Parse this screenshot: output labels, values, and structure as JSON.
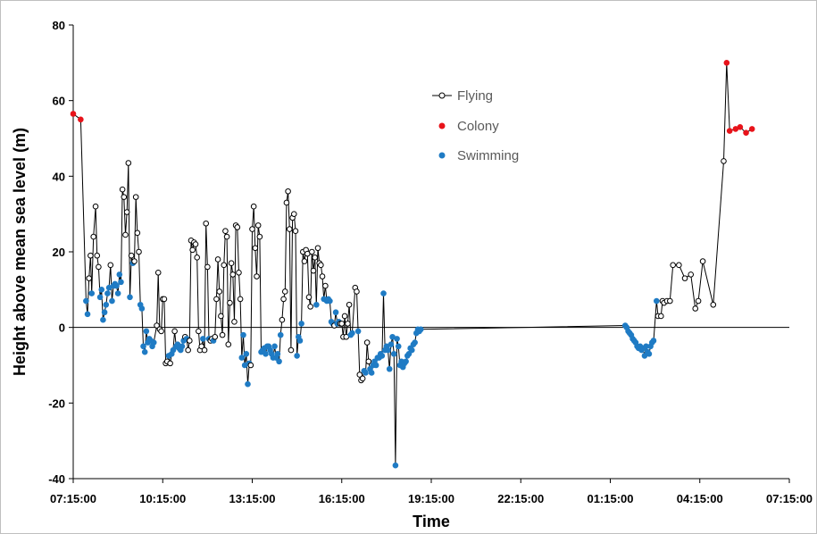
{
  "chart_data": {
    "type": "scatter",
    "xlabel": "Time",
    "ylabel": "Height above mean sea level (m)",
    "ylim": [
      -40,
      80
    ],
    "yticks": [
      "-40",
      "-20",
      "0",
      "20",
      "40",
      "60",
      "80"
    ],
    "x_unit": "hours from 07:15:00",
    "xlim": [
      0,
      24
    ],
    "xticks": [
      "07:15:00",
      "10:15:00",
      "13:15:00",
      "16:15:00",
      "19:15:00",
      "22:15:00",
      "01:15:00",
      "04:15:00",
      "07:15:00"
    ],
    "legend_position": "upper-middle",
    "grid": false,
    "colors": {
      "flying": "#000000",
      "colony": "#e8131a",
      "swimming": "#1f7bc4",
      "line": "#000000"
    },
    "series": [
      {
        "name": "Flying",
        "marker": "open-circle",
        "line": true
      },
      {
        "name": "Colony",
        "marker": "filled-circle",
        "line": false
      },
      {
        "name": "Swimming",
        "marker": "filled-circle",
        "line": false
      }
    ],
    "points": [
      [
        0.0,
        56.5,
        "c"
      ],
      [
        0.25,
        55.0,
        "c"
      ],
      [
        0.43,
        7.0,
        "s"
      ],
      [
        0.48,
        3.5,
        "s"
      ],
      [
        0.53,
        13.0,
        "f"
      ],
      [
        0.58,
        19.0,
        "f"
      ],
      [
        0.62,
        9.0,
        "s"
      ],
      [
        0.68,
        24.0,
        "f"
      ],
      [
        0.75,
        32.0,
        "f"
      ],
      [
        0.8,
        19.0,
        "f"
      ],
      [
        0.85,
        16.0,
        "f"
      ],
      [
        0.9,
        8.0,
        "s"
      ],
      [
        0.95,
        10.0,
        "s"
      ],
      [
        1.0,
        2.0,
        "s"
      ],
      [
        1.05,
        4.0,
        "s"
      ],
      [
        1.1,
        6.0,
        "s"
      ],
      [
        1.15,
        9.0,
        "s"
      ],
      [
        1.2,
        10.5,
        "s"
      ],
      [
        1.25,
        16.5,
        "f"
      ],
      [
        1.3,
        7.0,
        "s"
      ],
      [
        1.35,
        11.0,
        "s"
      ],
      [
        1.4,
        11.5,
        "s"
      ],
      [
        1.45,
        11.0,
        "s"
      ],
      [
        1.5,
        9.0,
        "s"
      ],
      [
        1.55,
        14.0,
        "s"
      ],
      [
        1.6,
        12.0,
        "s"
      ],
      [
        1.65,
        36.5,
        "f"
      ],
      [
        1.7,
        34.5,
        "f"
      ],
      [
        1.75,
        24.5,
        "f"
      ],
      [
        1.8,
        30.5,
        "f"
      ],
      [
        1.85,
        43.5,
        "f"
      ],
      [
        1.9,
        8.0,
        "s"
      ],
      [
        1.95,
        19.0,
        "f"
      ],
      [
        2.0,
        17.0,
        "s"
      ],
      [
        2.05,
        17.5,
        "f"
      ],
      [
        2.1,
        34.5,
        "f"
      ],
      [
        2.15,
        25.0,
        "f"
      ],
      [
        2.2,
        20.0,
        "f"
      ],
      [
        2.25,
        6.0,
        "s"
      ],
      [
        2.3,
        5.0,
        "s"
      ],
      [
        2.35,
        -5.0,
        "s"
      ],
      [
        2.4,
        -6.5,
        "s"
      ],
      [
        2.45,
        -1.0,
        "s"
      ],
      [
        2.5,
        -4.0,
        "s"
      ],
      [
        2.55,
        -3.0,
        "s"
      ],
      [
        2.6,
        -3.5,
        "s"
      ],
      [
        2.65,
        -5.0,
        "s"
      ],
      [
        2.7,
        -4.0,
        "s"
      ],
      [
        2.8,
        0.5,
        "f"
      ],
      [
        2.85,
        14.5,
        "f"
      ],
      [
        2.9,
        -0.5,
        "f"
      ],
      [
        2.95,
        -1.0,
        "f"
      ],
      [
        3.0,
        7.5,
        "f"
      ],
      [
        3.05,
        7.5,
        "f"
      ],
      [
        3.1,
        -9.5,
        "f"
      ],
      [
        3.15,
        -9.0,
        "f"
      ],
      [
        3.2,
        -7.5,
        "s"
      ],
      [
        3.25,
        -9.5,
        "f"
      ],
      [
        3.3,
        -7.0,
        "s"
      ],
      [
        3.35,
        -6.0,
        "s"
      ],
      [
        3.4,
        -1.0,
        "f"
      ],
      [
        3.45,
        -5.0,
        "s"
      ],
      [
        3.5,
        -4.5,
        "s"
      ],
      [
        3.55,
        -5.5,
        "s"
      ],
      [
        3.6,
        -6.0,
        "s"
      ],
      [
        3.65,
        -5.0,
        "s"
      ],
      [
        3.7,
        -3.5,
        "s"
      ],
      [
        3.75,
        -2.5,
        "f"
      ],
      [
        3.8,
        -3.0,
        "s"
      ],
      [
        3.85,
        -6.0,
        "f"
      ],
      [
        3.9,
        -3.5,
        "f"
      ],
      [
        3.95,
        23.0,
        "f"
      ],
      [
        4.0,
        20.5,
        "f"
      ],
      [
        4.05,
        22.5,
        "f"
      ],
      [
        4.1,
        22.0,
        "f"
      ],
      [
        4.15,
        18.5,
        "f"
      ],
      [
        4.2,
        -1.0,
        "f"
      ],
      [
        4.25,
        -6.0,
        "f"
      ],
      [
        4.3,
        -5.0,
        "f"
      ],
      [
        4.35,
        -3.0,
        "s"
      ],
      [
        4.4,
        -6.0,
        "f"
      ],
      [
        4.45,
        27.5,
        "f"
      ],
      [
        4.5,
        16.0,
        "f"
      ],
      [
        4.55,
        -3.0,
        "s"
      ],
      [
        4.6,
        -3.5,
        "f"
      ],
      [
        4.65,
        -3.0,
        "f"
      ],
      [
        4.7,
        -3.5,
        "s"
      ],
      [
        4.75,
        -2.5,
        "f"
      ],
      [
        4.8,
        7.5,
        "f"
      ],
      [
        4.85,
        18.0,
        "f"
      ],
      [
        4.9,
        9.5,
        "f"
      ],
      [
        4.95,
        3.0,
        "f"
      ],
      [
        5.0,
        -2.0,
        "f"
      ],
      [
        5.05,
        16.5,
        "f"
      ],
      [
        5.1,
        25.5,
        "f"
      ],
      [
        5.15,
        24.0,
        "f"
      ],
      [
        5.2,
        -4.5,
        "f"
      ],
      [
        5.25,
        6.5,
        "f"
      ],
      [
        5.3,
        17.0,
        "f"
      ],
      [
        5.35,
        14.0,
        "f"
      ],
      [
        5.4,
        1.5,
        "f"
      ],
      [
        5.45,
        27.0,
        "f"
      ],
      [
        5.5,
        26.5,
        "f"
      ],
      [
        5.55,
        14.5,
        "f"
      ],
      [
        5.6,
        7.5,
        "f"
      ],
      [
        5.65,
        -8.0,
        "s"
      ],
      [
        5.7,
        -2.0,
        "s"
      ],
      [
        5.75,
        -10.0,
        "s"
      ],
      [
        5.8,
        -7.0,
        "s"
      ],
      [
        5.85,
        -15.0,
        "s"
      ],
      [
        5.9,
        -9.5,
        "s"
      ],
      [
        5.95,
        -10.0,
        "f"
      ],
      [
        6.0,
        26.0,
        "f"
      ],
      [
        6.05,
        32.0,
        "f"
      ],
      [
        6.1,
        21.0,
        "f"
      ],
      [
        6.15,
        13.5,
        "f"
      ],
      [
        6.2,
        27.0,
        "f"
      ],
      [
        6.25,
        24.0,
        "f"
      ],
      [
        6.3,
        -6.5,
        "s"
      ],
      [
        6.35,
        -6.0,
        "s"
      ],
      [
        6.4,
        -5.5,
        "s"
      ],
      [
        6.45,
        -7.0,
        "s"
      ],
      [
        6.5,
        -5.0,
        "s"
      ],
      [
        6.55,
        -5.0,
        "s"
      ],
      [
        6.6,
        -6.0,
        "s"
      ],
      [
        6.65,
        -7.0,
        "s"
      ],
      [
        6.7,
        -8.0,
        "s"
      ],
      [
        6.75,
        -5.0,
        "s"
      ],
      [
        6.8,
        -8.0,
        "s"
      ],
      [
        6.85,
        -7.0,
        "s"
      ],
      [
        6.9,
        -9.0,
        "s"
      ],
      [
        6.95,
        -2.0,
        "s"
      ],
      [
        7.0,
        2.0,
        "f"
      ],
      [
        7.05,
        7.5,
        "f"
      ],
      [
        7.1,
        9.5,
        "f"
      ],
      [
        7.15,
        33.0,
        "f"
      ],
      [
        7.2,
        36.0,
        "f"
      ],
      [
        7.25,
        26.0,
        "f"
      ],
      [
        7.3,
        -6.0,
        "f"
      ],
      [
        7.35,
        29.0,
        "f"
      ],
      [
        7.4,
        30.0,
        "f"
      ],
      [
        7.45,
        25.5,
        "f"
      ],
      [
        7.5,
        -7.5,
        "s"
      ],
      [
        7.55,
        -2.5,
        "s"
      ],
      [
        7.6,
        -3.5,
        "s"
      ],
      [
        7.65,
        1.0,
        "s"
      ],
      [
        7.7,
        20.0,
        "f"
      ],
      [
        7.75,
        17.5,
        "f"
      ],
      [
        7.8,
        20.5,
        "f"
      ],
      [
        7.85,
        19.5,
        "f"
      ],
      [
        7.9,
        8.0,
        "f"
      ],
      [
        7.95,
        5.5,
        "f"
      ],
      [
        8.0,
        20.0,
        "f"
      ],
      [
        8.05,
        15.0,
        "f"
      ],
      [
        8.1,
        18.5,
        "f"
      ],
      [
        8.15,
        6.0,
        "s"
      ],
      [
        8.2,
        21.0,
        "f"
      ],
      [
        8.25,
        17.0,
        "f"
      ],
      [
        8.3,
        16.5,
        "f"
      ],
      [
        8.35,
        13.5,
        "f"
      ],
      [
        8.4,
        7.5,
        "s"
      ],
      [
        8.45,
        11.0,
        "f"
      ],
      [
        8.5,
        7.0,
        "s"
      ],
      [
        8.55,
        7.5,
        "s"
      ],
      [
        8.6,
        7.0,
        "s"
      ],
      [
        8.65,
        1.5,
        "s"
      ],
      [
        8.7,
        1.0,
        "s"
      ],
      [
        8.75,
        0.5,
        "f"
      ],
      [
        8.8,
        4.0,
        "s"
      ],
      [
        8.85,
        1.0,
        "s"
      ],
      [
        8.9,
        1.5,
        "s"
      ],
      [
        8.95,
        1.0,
        "f"
      ],
      [
        9.0,
        1.0,
        "f"
      ],
      [
        9.05,
        -2.5,
        "f"
      ],
      [
        9.1,
        3.0,
        "f"
      ],
      [
        9.15,
        -2.5,
        "f"
      ],
      [
        9.2,
        1.0,
        "f"
      ],
      [
        9.25,
        6.0,
        "f"
      ],
      [
        9.3,
        -2.0,
        "s"
      ],
      [
        9.35,
        -1.5,
        "s"
      ],
      [
        9.45,
        10.5,
        "f"
      ],
      [
        9.5,
        9.5,
        "f"
      ],
      [
        9.55,
        -1.0,
        "s"
      ],
      [
        9.6,
        -12.5,
        "f"
      ],
      [
        9.65,
        -14.0,
        "f"
      ],
      [
        9.7,
        -13.5,
        "f"
      ],
      [
        9.75,
        -11.5,
        "s"
      ],
      [
        9.8,
        -12.0,
        "s"
      ],
      [
        9.85,
        -4.0,
        "f"
      ],
      [
        9.9,
        -9.0,
        "f"
      ],
      [
        9.95,
        -11.0,
        "s"
      ],
      [
        10.0,
        -12.0,
        "s"
      ],
      [
        10.05,
        -10.0,
        "s"
      ],
      [
        10.1,
        -9.0,
        "s"
      ],
      [
        10.15,
        -10.0,
        "s"
      ],
      [
        10.2,
        -8.0,
        "s"
      ],
      [
        10.25,
        -8.0,
        "s"
      ],
      [
        10.3,
        -7.0,
        "s"
      ],
      [
        10.35,
        -7.5,
        "s"
      ],
      [
        10.4,
        9.0,
        "s"
      ],
      [
        10.45,
        -6.0,
        "s"
      ],
      [
        10.5,
        -5.0,
        "s"
      ],
      [
        10.55,
        -6.0,
        "s"
      ],
      [
        10.6,
        -11.0,
        "s"
      ],
      [
        10.65,
        -4.5,
        "s"
      ],
      [
        10.7,
        -2.5,
        "s"
      ],
      [
        10.75,
        -7.0,
        "s"
      ],
      [
        10.8,
        -36.5,
        "s"
      ],
      [
        10.85,
        -3.0,
        "s"
      ],
      [
        10.9,
        -5.0,
        "s"
      ],
      [
        10.95,
        -10.0,
        "s"
      ],
      [
        11.0,
        -9.0,
        "s"
      ],
      [
        11.05,
        -10.5,
        "s"
      ],
      [
        11.1,
        -9.5,
        "s"
      ],
      [
        11.15,
        -9.0,
        "s"
      ],
      [
        11.2,
        -7.5,
        "s"
      ],
      [
        11.25,
        -7.0,
        "s"
      ],
      [
        11.3,
        -5.5,
        "s"
      ],
      [
        11.35,
        -6.0,
        "s"
      ],
      [
        11.4,
        -4.5,
        "s"
      ],
      [
        11.45,
        -4.0,
        "s"
      ],
      [
        11.5,
        -1.5,
        "s"
      ],
      [
        11.55,
        -0.5,
        "s"
      ],
      [
        11.6,
        -1.0,
        "s"
      ],
      [
        11.65,
        -0.5,
        "s"
      ],
      [
        18.5,
        0.5,
        "s"
      ],
      [
        18.55,
        0.0,
        "s"
      ],
      [
        18.6,
        -1.0,
        "s"
      ],
      [
        18.65,
        -1.5,
        "s"
      ],
      [
        18.7,
        -2.0,
        "s"
      ],
      [
        18.75,
        -3.0,
        "s"
      ],
      [
        18.8,
        -3.5,
        "s"
      ],
      [
        18.85,
        -4.0,
        "s"
      ],
      [
        18.9,
        -5.0,
        "s"
      ],
      [
        18.95,
        -5.5,
        "s"
      ],
      [
        19.0,
        -5.0,
        "s"
      ],
      [
        19.05,
        -6.0,
        "s"
      ],
      [
        19.1,
        -5.5,
        "s"
      ],
      [
        19.15,
        -7.5,
        "s"
      ],
      [
        19.2,
        -5.0,
        "s"
      ],
      [
        19.25,
        -6.5,
        "s"
      ],
      [
        19.3,
        -7.0,
        "s"
      ],
      [
        19.35,
        -5.0,
        "s"
      ],
      [
        19.4,
        -4.0,
        "s"
      ],
      [
        19.45,
        -3.5,
        "s"
      ],
      [
        19.55,
        7.0,
        "s"
      ],
      [
        19.6,
        3.0,
        "f"
      ],
      [
        19.7,
        3.0,
        "f"
      ],
      [
        19.75,
        7.0,
        "f"
      ],
      [
        19.8,
        6.5,
        "f"
      ],
      [
        19.9,
        7.0,
        "f"
      ],
      [
        20.0,
        7.0,
        "f"
      ],
      [
        20.1,
        16.5,
        "f"
      ],
      [
        20.3,
        16.5,
        "f"
      ],
      [
        20.5,
        13.0,
        "f"
      ],
      [
        20.7,
        14.0,
        "f"
      ],
      [
        20.85,
        5.0,
        "f"
      ],
      [
        20.95,
        7.0,
        "f"
      ],
      [
        21.1,
        17.5,
        "f"
      ],
      [
        21.45,
        6.0,
        "f"
      ],
      [
        21.8,
        44.0,
        "f"
      ],
      [
        21.9,
        70.0,
        "c"
      ],
      [
        22.0,
        52.0,
        "c"
      ],
      [
        22.2,
        52.5,
        "c"
      ],
      [
        22.35,
        53.0,
        "c"
      ],
      [
        22.55,
        51.5,
        "c"
      ],
      [
        22.75,
        52.5,
        "c"
      ]
    ]
  },
  "legend": {
    "items": [
      {
        "key": "flying",
        "label": "Flying"
      },
      {
        "key": "colony",
        "label": "Colony"
      },
      {
        "key": "swimming",
        "label": "Swimming"
      }
    ]
  }
}
